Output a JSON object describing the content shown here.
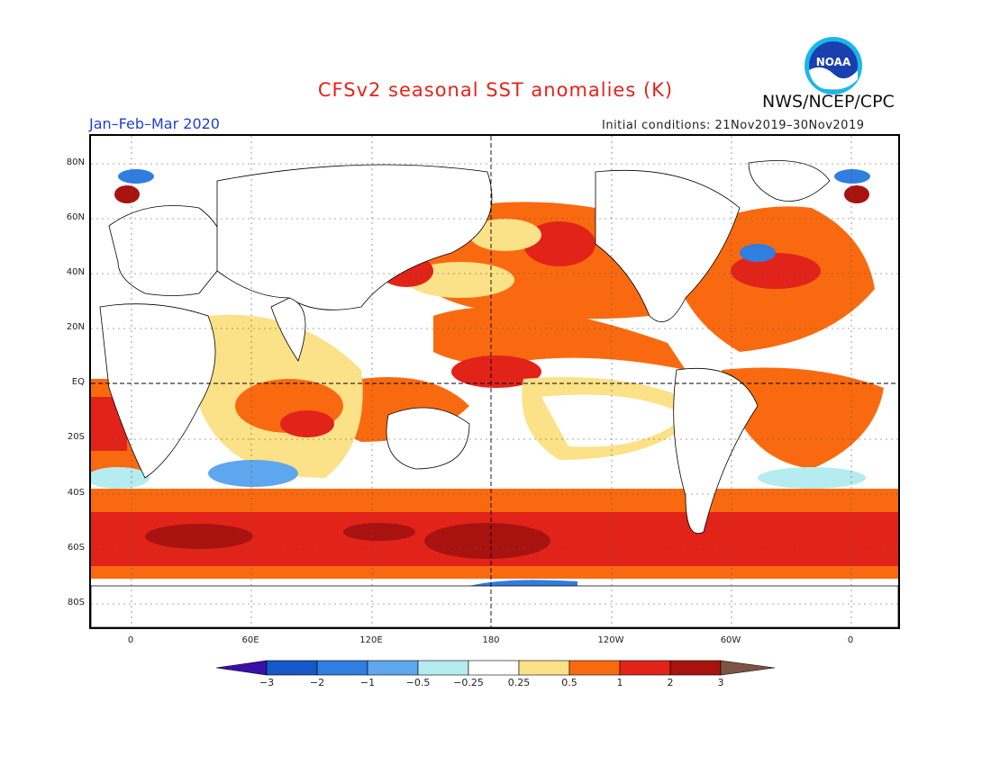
{
  "header": {
    "title": "CFSv2 seasonal SST anomalies (K)",
    "agency": "NWS/NCEP/CPC",
    "logo_text": "NOAA",
    "period": "Jan–Feb–Mar 2020",
    "initial_conditions": "Initial conditions: 21Nov2019–30Nov2019"
  },
  "map": {
    "lat_labels": [
      "80N",
      "60N",
      "40N",
      "20N",
      "EQ",
      "20S",
      "40S",
      "60S",
      "80S"
    ],
    "lon_labels": [
      "0",
      "60E",
      "120E",
      "180",
      "120W",
      "60W",
      "0"
    ],
    "projection": "cylindrical",
    "colors": {
      "land": "#ffffff",
      "coast": "#000000",
      "grid": "#555555"
    }
  },
  "colorbar": {
    "ticks": [
      "−3",
      "−2",
      "−1",
      "−0.5",
      "−0.25",
      "0.25",
      "0.5",
      "1",
      "2",
      "3"
    ],
    "colors": [
      "#3a0fa8",
      "#1558c8",
      "#2f7ee0",
      "#5ea6ee",
      "#b5ecf0",
      "#ffffff",
      "#fbe187",
      "#f96a10",
      "#e2231a",
      "#a8130f",
      "#7c5444"
    ]
  }
}
